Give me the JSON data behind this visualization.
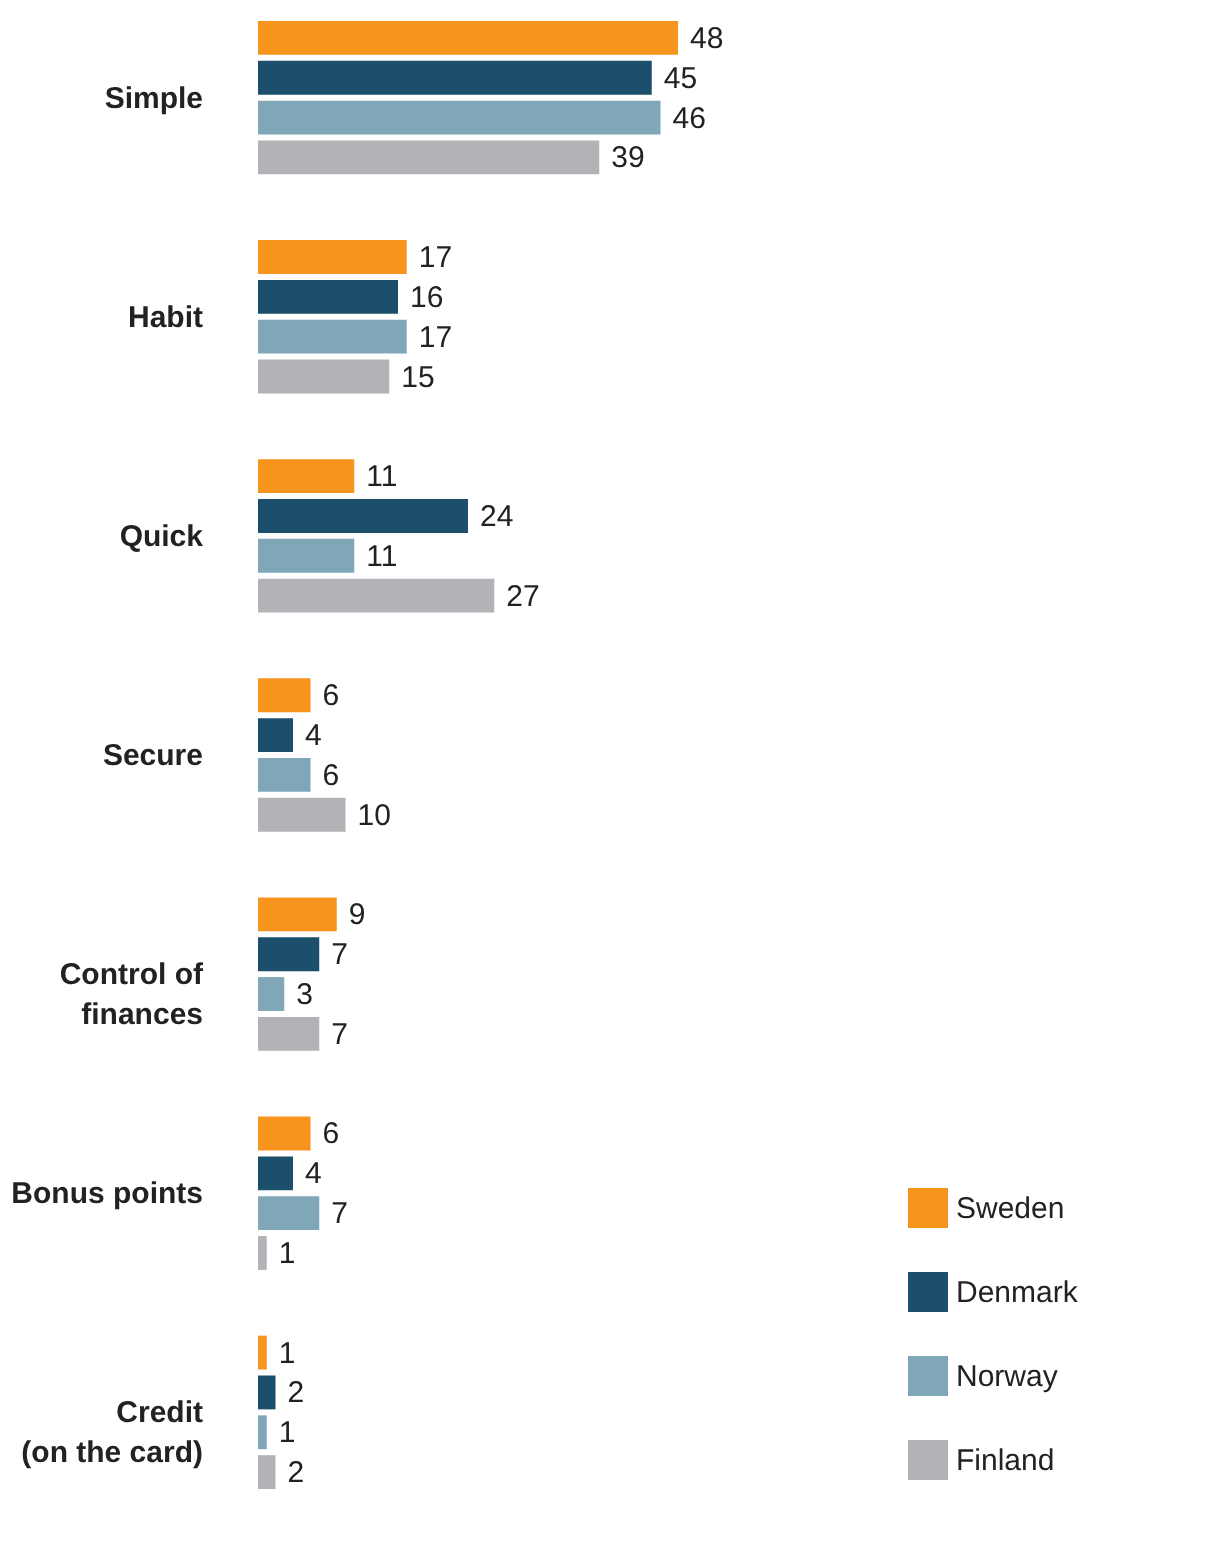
{
  "chart_data": {
    "type": "bar",
    "orientation": "horizontal",
    "categories": [
      "Simple",
      "Habit",
      "Quick",
      "Secure",
      "Control of finances",
      "Bonus points",
      "Credit (on the card)"
    ],
    "series": [
      {
        "name": "Sweden",
        "color": "#f7941d",
        "values": [
          48,
          17,
          11,
          6,
          9,
          6,
          1
        ]
      },
      {
        "name": "Denmark",
        "color": "#1b4f6b",
        "values": [
          45,
          16,
          24,
          4,
          7,
          4,
          2
        ]
      },
      {
        "name": "Norway",
        "color": "#7fa7b8",
        "values": [
          46,
          17,
          11,
          6,
          3,
          7,
          1
        ]
      },
      {
        "name": "Finland",
        "color": "#b1b3b6",
        "values": [
          39,
          15,
          27,
          10,
          7,
          1,
          2
        ]
      }
    ],
    "data_labels": true,
    "legend": "bottom right",
    "grid": false
  }
}
